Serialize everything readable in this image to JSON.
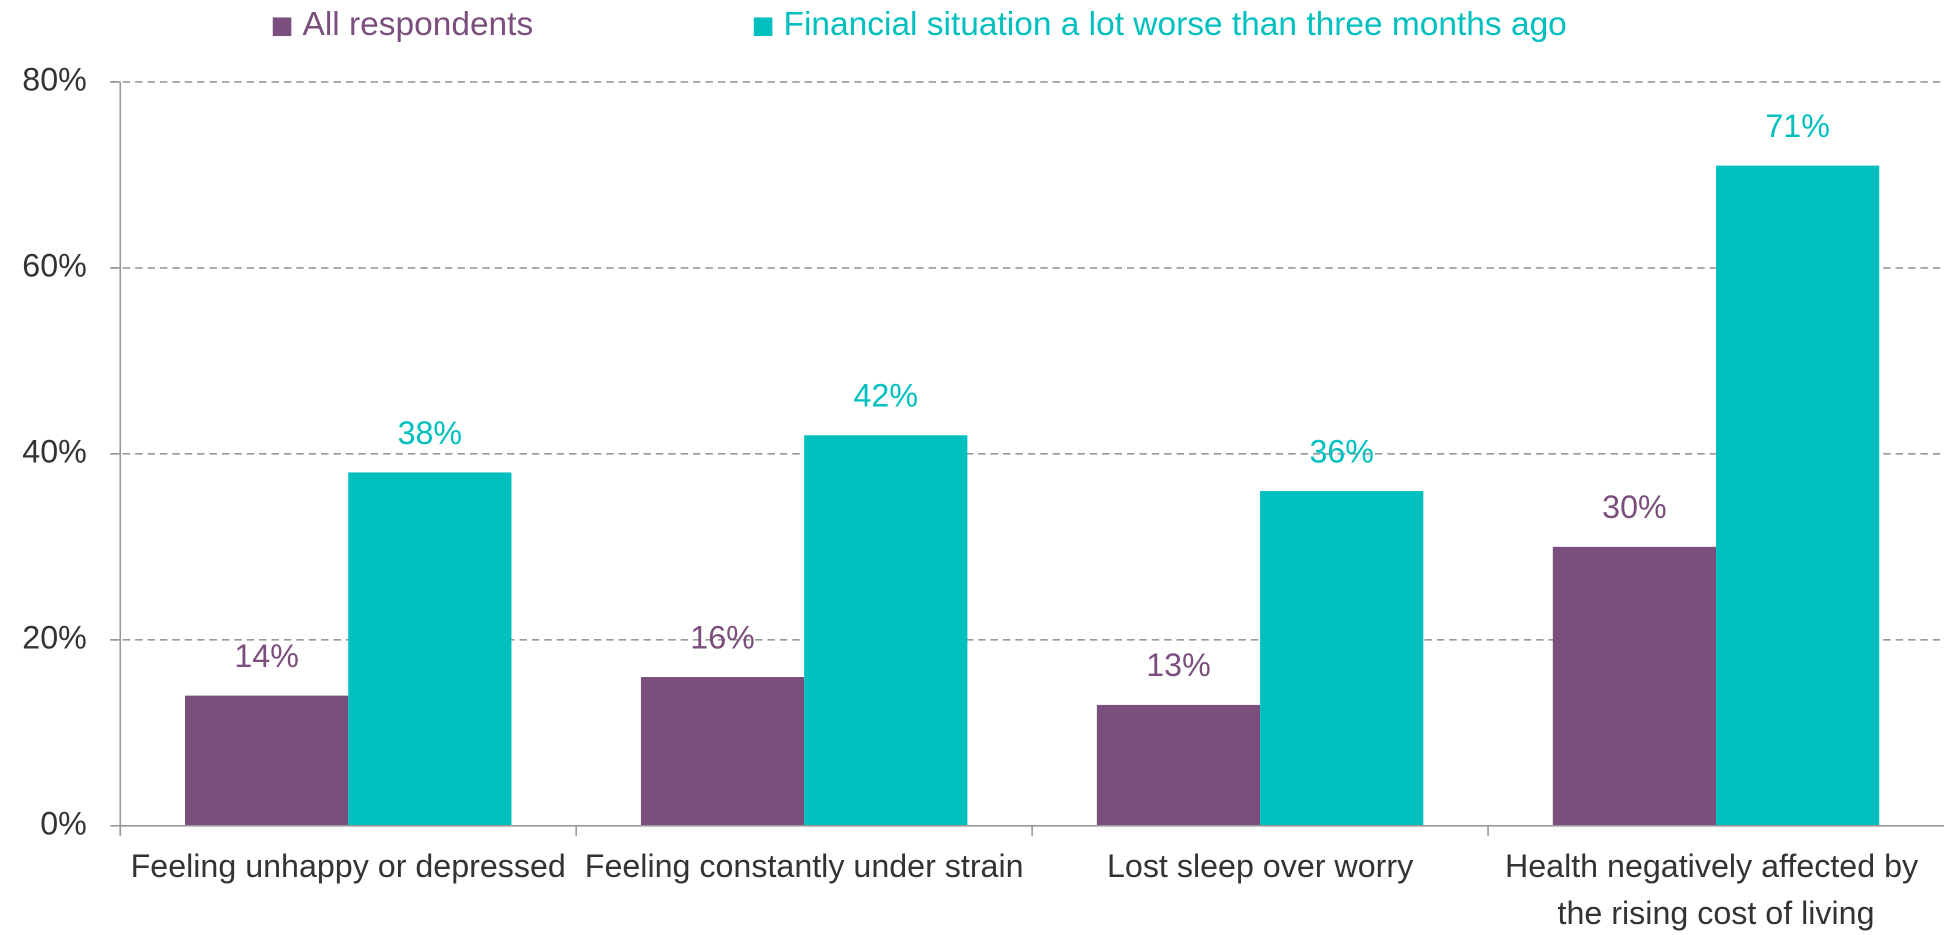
{
  "chart_data": {
    "type": "bar",
    "categories": [
      "Feeling unhappy or depressed",
      "Feeling constantly under strain",
      "Lost sleep over worry",
      "Health negatively affected by the rising cost of living"
    ],
    "series": [
      {
        "name": "All respondents",
        "color": "#7b4f7d",
        "values": [
          14,
          16,
          13,
          30
        ],
        "value_labels": [
          "14%",
          "16%",
          "13%",
          "30%"
        ]
      },
      {
        "name": "Financial situation a lot worse than three months ago",
        "color": "#00bfbf",
        "values": [
          38,
          42,
          36,
          71
        ],
        "value_labels": [
          "38%",
          "42%",
          "36%",
          "71%"
        ]
      }
    ],
    "ylim": [
      0,
      80
    ],
    "yticks": [
      {
        "value": 0,
        "label": "0%"
      },
      {
        "value": 20,
        "label": "20%"
      },
      {
        "value": 40,
        "label": "40%"
      },
      {
        "value": 60,
        "label": "60%"
      },
      {
        "value": 80,
        "label": "80%"
      }
    ],
    "grid": true,
    "legend": "top"
  }
}
